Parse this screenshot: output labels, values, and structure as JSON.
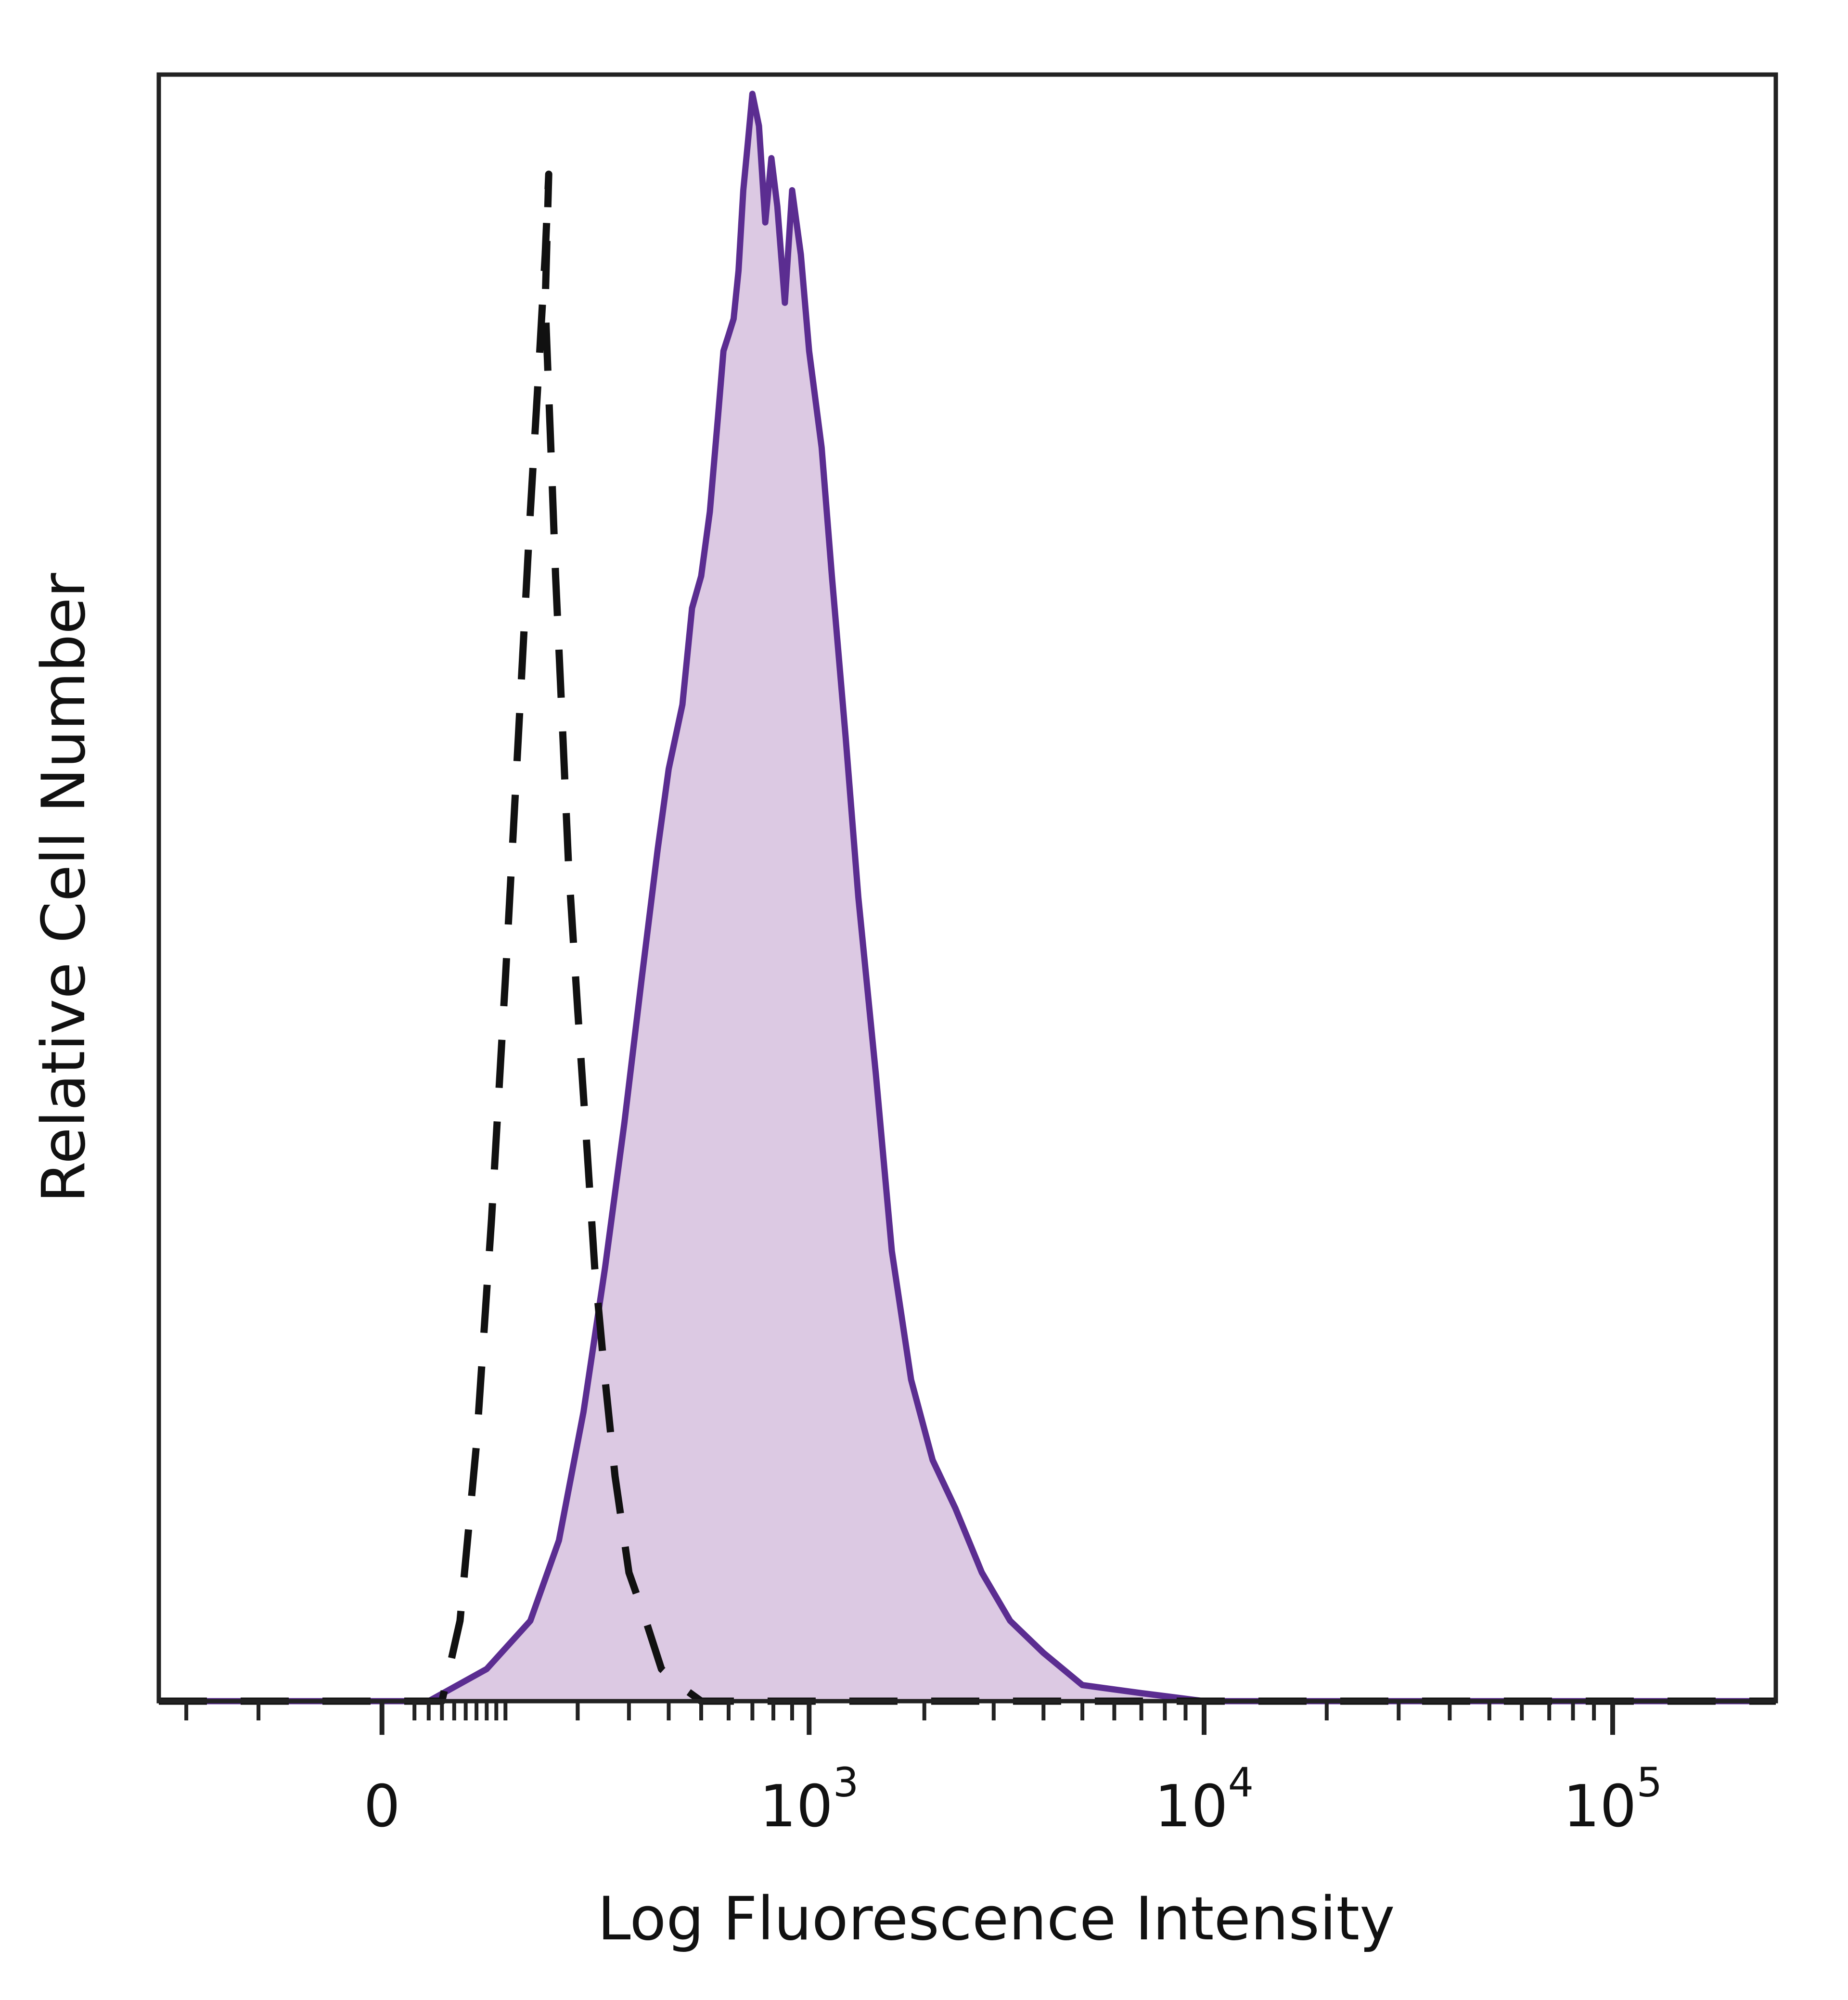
{
  "chart_data": {
    "type": "area",
    "xlabel": "Log Fluorescence Intensity",
    "ylabel": "Relative Cell Number",
    "x_scale": "biexponential",
    "xlim": [
      -250,
      250000
    ],
    "ylim": [
      0,
      100
    ],
    "grid": false,
    "x_ticks": [
      {
        "value": 0,
        "base": "0",
        "exp": ""
      },
      {
        "value": 1000,
        "base": "10",
        "exp": "3"
      },
      {
        "value": 10000,
        "base": "10",
        "exp": "4"
      },
      {
        "value": 100000,
        "base": "10",
        "exp": "5"
      }
    ],
    "series": [
      {
        "style": "filled",
        "line_color": "#5b2d91",
        "fill_color": "#dcc9e3",
        "x": [
          -250,
          30,
          80,
          130,
          170,
          210,
          250,
          290,
          330,
          370,
          400,
          440,
          470,
          500,
          530,
          560,
          580,
          600,
          620,
          640,
          660,
          680,
          700,
          730,
          760,
          790,
          820,
          860,
          900,
          950,
          1000,
          1080,
          1150,
          1250,
          1350,
          1500,
          1650,
          1850,
          2100,
          2400,
          2800,
          3300,
          4000,
          5000,
          7000,
          10000,
          250000
        ],
        "y": [
          0,
          0,
          2,
          5,
          10,
          18,
          27,
          36,
          45,
          53,
          58,
          62,
          68,
          70,
          74,
          80,
          84,
          85,
          86,
          89,
          94,
          97,
          100,
          98,
          92,
          96,
          93,
          87,
          94,
          90,
          84,
          78,
          70,
          60,
          50,
          39,
          28,
          20,
          15,
          12,
          8,
          5,
          3,
          1,
          0.5,
          0,
          0
        ]
      },
      {
        "style": "dashed",
        "line_color": "#111111",
        "x": [
          -250,
          40,
          55,
          70,
          85,
          100,
          115,
          130,
          140,
          150,
          155,
          150,
          158,
          165,
          175,
          185,
          200,
          215,
          230,
          250,
          270,
          300,
          340,
          380,
          430,
          500,
          250000
        ],
        "y": [
          0,
          0,
          5,
          16,
          30,
          45,
          60,
          74,
          82,
          90,
          95,
          87,
          78,
          70,
          61,
          52,
          43,
          35,
          27,
          20,
          14,
          8,
          5,
          2,
          1,
          0,
          0
        ]
      }
    ]
  }
}
